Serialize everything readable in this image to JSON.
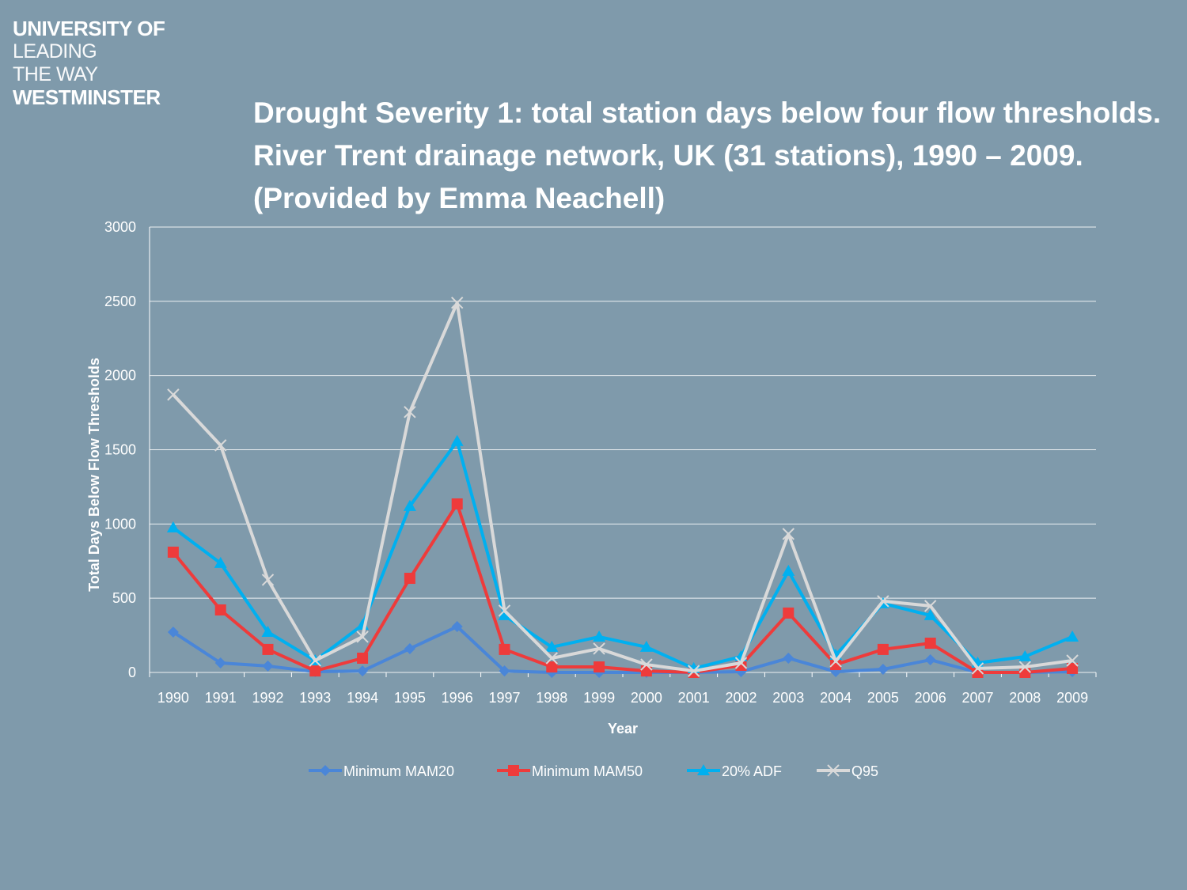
{
  "logo": {
    "line1": "UNIVERSITY OF",
    "line2": "LEADING",
    "line3": "THE WAY",
    "line4": "WESTMINSTER"
  },
  "title": "Drought Severity 1: total station days below four flow thresholds. River Trent drainage network, UK (31 stations), 1990 – 2009.  (Provided by Emma Neachell)",
  "chart_data": {
    "type": "line",
    "xlabel": "Year",
    "ylabel": "Total Days Below Flow Thresholds",
    "ylim": [
      0,
      3000
    ],
    "yticks": [
      0,
      500,
      1000,
      1500,
      2000,
      2500,
      3000
    ],
    "grid": true,
    "legend": "bottom",
    "categories": [
      "1990",
      "1991",
      "1992",
      "1993",
      "1994",
      "1995",
      "1996",
      "1997",
      "1998",
      "1999",
      "2000",
      "2001",
      "2002",
      "2003",
      "2004",
      "2005",
      "2006",
      "2007",
      "2008",
      "2009"
    ],
    "series": [
      {
        "name": "Minimum MAM20",
        "color": "#4a86d8",
        "marker": "diamond",
        "values": [
          272,
          64,
          43,
          5,
          10,
          160,
          309,
          10,
          0,
          0,
          0,
          0,
          5,
          96,
          5,
          21,
          85,
          0,
          0,
          5
        ]
      },
      {
        "name": "Minimum MAM50",
        "color": "#ee3b3b",
        "marker": "square",
        "values": [
          810,
          421,
          155,
          10,
          96,
          634,
          1135,
          155,
          37,
          37,
          10,
          0,
          48,
          400,
          53,
          155,
          197,
          0,
          0,
          27
        ]
      },
      {
        "name": "20% ADF",
        "color": "#00b0f0",
        "marker": "triangle",
        "values": [
          975,
          736,
          272,
          80,
          320,
          1120,
          1557,
          384,
          171,
          240,
          171,
          27,
          107,
          683,
          117,
          464,
          384,
          64,
          107,
          240
        ]
      },
      {
        "name": "Q95",
        "color": "#d9d9d9",
        "marker": "x",
        "values": [
          1871,
          1530,
          624,
          80,
          240,
          1754,
          2490,
          416,
          96,
          160,
          53,
          10,
          64,
          933,
          75,
          480,
          448,
          27,
          37,
          80
        ]
      }
    ]
  }
}
